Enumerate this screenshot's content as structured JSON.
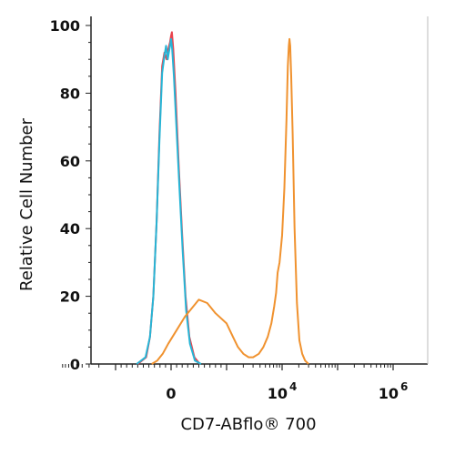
{
  "chart_data": {
    "type": "line",
    "title": "",
    "xlabel": "CD7-ABflo® 700",
    "ylabel": "Relative Cell Number",
    "x_scale": "biexponential",
    "ylim": [
      0,
      100
    ],
    "grid": false,
    "legend": "none",
    "y_ticks": [
      "0",
      "20",
      "40",
      "60",
      "80",
      "100"
    ],
    "x_tick_labels": [
      {
        "base": "0",
        "exp": ""
      },
      {
        "base": "10",
        "exp": "4"
      },
      {
        "base": "10",
        "exp": "6"
      }
    ],
    "series": [
      {
        "color": "#e8434d",
        "points": [
          [
            -600,
            0
          ],
          [
            -450,
            2
          ],
          [
            -380,
            8
          ],
          [
            -320,
            20
          ],
          [
            -260,
            42
          ],
          [
            -210,
            68
          ],
          [
            -160,
            88
          ],
          [
            -120,
            92
          ],
          [
            -80,
            90
          ],
          [
            -50,
            93
          ],
          [
            -20,
            95
          ],
          [
            0,
            97
          ],
          [
            15,
            98
          ],
          [
            40,
            93
          ],
          [
            80,
            80
          ],
          [
            140,
            58
          ],
          [
            200,
            38
          ],
          [
            260,
            20
          ],
          [
            330,
            8
          ],
          [
            420,
            2
          ],
          [
            520,
            0
          ]
        ]
      },
      {
        "color": "#26b5d6",
        "points": [
          [
            -620,
            0
          ],
          [
            -460,
            2
          ],
          [
            -380,
            8
          ],
          [
            -320,
            20
          ],
          [
            -260,
            42
          ],
          [
            -210,
            66
          ],
          [
            -160,
            86
          ],
          [
            -120,
            91
          ],
          [
            -90,
            94
          ],
          [
            -60,
            90
          ],
          [
            -30,
            93
          ],
          [
            0,
            96
          ],
          [
            20,
            93
          ],
          [
            50,
            85
          ],
          [
            90,
            72
          ],
          [
            150,
            52
          ],
          [
            210,
            33
          ],
          [
            270,
            16
          ],
          [
            340,
            6
          ],
          [
            430,
            1
          ],
          [
            540,
            0
          ]
        ]
      },
      {
        "color": "#f0922f",
        "points": [
          [
            -350,
            0
          ],
          [
            -250,
            1
          ],
          [
            -150,
            3
          ],
          [
            -50,
            6
          ],
          [
            100,
            10
          ],
          [
            250,
            14
          ],
          [
            400,
            17
          ],
          [
            500,
            19
          ],
          [
            650,
            18
          ],
          [
            800,
            15
          ],
          [
            1000,
            12
          ],
          [
            1300,
            8
          ],
          [
            1600,
            5
          ],
          [
            2000,
            3
          ],
          [
            2500,
            2
          ],
          [
            3000,
            2
          ],
          [
            3800,
            3
          ],
          [
            4600,
            5
          ],
          [
            5500,
            8
          ],
          [
            6400,
            12
          ],
          [
            7200,
            17
          ],
          [
            7800,
            21
          ],
          [
            8300,
            27
          ],
          [
            9000,
            30
          ],
          [
            10000,
            38
          ],
          [
            11000,
            52
          ],
          [
            12000,
            72
          ],
          [
            12700,
            88
          ],
          [
            13200,
            94
          ],
          [
            13600,
            96
          ],
          [
            14000,
            94
          ],
          [
            14600,
            85
          ],
          [
            15500,
            68
          ],
          [
            16800,
            40
          ],
          [
            18500,
            18
          ],
          [
            20500,
            7
          ],
          [
            23000,
            3
          ],
          [
            26000,
            1
          ],
          [
            30000,
            0
          ]
        ]
      }
    ]
  }
}
